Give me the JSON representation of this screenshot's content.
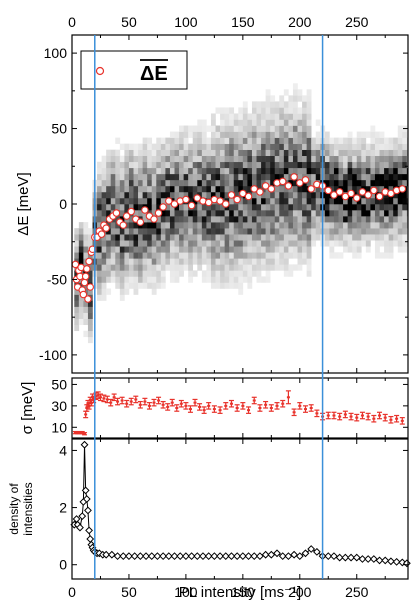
{
  "chart_data": [
    {
      "panel": "top",
      "type": "scatter",
      "xlabel": "",
      "ylabel": "ΔE [meV]",
      "xlim": [
        0,
        295
      ],
      "ylim": [
        -112,
        112
      ],
      "x_ticks": [
        "0",
        "50",
        "100",
        "150",
        "200",
        "250"
      ],
      "y_ticks": [
        "100",
        "50",
        "0",
        "-50",
        "-100"
      ],
      "y_tick_values": [
        100,
        50,
        0,
        -50,
        -100
      ],
      "legend": {
        "placement": "top-left",
        "marker": "open circle",
        "label": "ΔE",
        "overline": true
      },
      "background": "grayscale 2D histogram",
      "vlines": [
        20,
        220
      ],
      "series": [
        {
          "name": "ΔE",
          "marker": "open-circle",
          "color": "#e8322b",
          "x": [
            3,
            4,
            5,
            6,
            7,
            8,
            9,
            10,
            11,
            12,
            13,
            14,
            15,
            16,
            17,
            18,
            20,
            22,
            24,
            26,
            28,
            30,
            33,
            36,
            39,
            42,
            45,
            48,
            52,
            56,
            60,
            64,
            68,
            72,
            76,
            80,
            85,
            90,
            95,
            100,
            105,
            110,
            115,
            120,
            125,
            130,
            135,
            140,
            145,
            150,
            155,
            160,
            165,
            170,
            175,
            180,
            185,
            190,
            195,
            200,
            205,
            210,
            215,
            220,
            225,
            230,
            235,
            240,
            245,
            250,
            255,
            260,
            265,
            270,
            275,
            280,
            285,
            290
          ],
          "y": [
            -40,
            -50,
            -55,
            -44,
            -48,
            -42,
            -57,
            -60,
            -52,
            -48,
            -43,
            -63,
            -38,
            -55,
            -32,
            -30,
            -22,
            -22,
            -18,
            -20,
            -14,
            -16,
            -10,
            -8,
            -6,
            -12,
            -14,
            -8,
            -5,
            -10,
            -12,
            -4,
            -8,
            -10,
            -6,
            -2,
            2,
            0,
            2,
            3,
            -1,
            4,
            2,
            1,
            3,
            2,
            0,
            6,
            3,
            7,
            5,
            10,
            8,
            12,
            10,
            14,
            15,
            12,
            18,
            14,
            16,
            10,
            13,
            12,
            9,
            6,
            8,
            5,
            7,
            4,
            8,
            6,
            9,
            5,
            8,
            7,
            9,
            10
          ]
        }
      ]
    },
    {
      "panel": "middle",
      "type": "scatter",
      "xlabel": "",
      "ylabel": "σ [meV]",
      "xlim": [
        0,
        295
      ],
      "ylim": [
        0,
        56
      ],
      "y_ticks": [
        "50",
        "30",
        "10"
      ],
      "y_tick_values": [
        50,
        30,
        10
      ],
      "vlines": [
        20,
        220
      ],
      "series": [
        {
          "marker": "error-bar",
          "color": "#e8322b",
          "x": [
            3,
            5,
            7,
            9,
            11,
            12,
            13,
            14,
            15,
            16,
            17,
            18,
            19,
            21,
            23,
            25,
            28,
            31,
            34,
            37,
            40,
            44,
            48,
            52,
            56,
            60,
            64,
            68,
            72,
            76,
            80,
            84,
            88,
            92,
            96,
            100,
            104,
            108,
            112,
            116,
            120,
            125,
            130,
            135,
            140,
            145,
            150,
            155,
            160,
            165,
            170,
            175,
            180,
            185,
            190,
            195,
            200,
            205,
            210,
            215,
            220,
            225,
            230,
            235,
            240,
            245,
            250,
            255,
            260,
            265,
            270,
            275,
            280,
            285,
            290
          ],
          "y": [
            5,
            5,
            5,
            5,
            4,
            22,
            28,
            32,
            30,
            35,
            33,
            38,
            36,
            39,
            40,
            38,
            37,
            36,
            33,
            38,
            34,
            35,
            32,
            34,
            36,
            31,
            34,
            30,
            33,
            35,
            31,
            29,
            33,
            28,
            32,
            30,
            27,
            33,
            29,
            26,
            30,
            27,
            26,
            30,
            32,
            28,
            30,
            26,
            35,
            28,
            31,
            28,
            30,
            32,
            38,
            24,
            30,
            27,
            28,
            23,
            20,
            21,
            21,
            20,
            22,
            20,
            19,
            21,
            20,
            18,
            21,
            19,
            17,
            18,
            16
          ],
          "err": [
            1,
            1,
            1,
            1,
            1,
            3,
            3,
            3,
            3,
            3,
            3,
            3,
            3,
            3,
            3,
            3,
            3,
            3,
            3,
            3,
            3,
            3,
            3,
            3,
            3,
            3,
            3,
            3,
            3,
            3,
            3,
            3,
            3,
            3,
            3,
            3,
            3,
            3,
            3,
            3,
            3,
            3,
            3,
            3,
            3,
            3,
            3,
            3,
            3,
            3,
            3,
            3,
            3,
            3,
            6,
            3,
            3,
            3,
            3,
            3,
            3,
            3,
            3,
            3,
            3,
            3,
            3,
            3,
            3,
            3,
            3,
            3,
            3,
            3,
            3
          ]
        }
      ]
    },
    {
      "panel": "bottom",
      "type": "line",
      "xlabel": "PL intensity [ms⁻¹]",
      "ylabel_line1": "density of",
      "ylabel_line2": "intensities",
      "xlim": [
        0,
        295
      ],
      "ylim": [
        -0.5,
        4.4
      ],
      "x_ticks": [
        "0",
        "50",
        "100",
        "150",
        "200",
        "250"
      ],
      "y_ticks": [
        "4",
        "2",
        "0"
      ],
      "y_tick_values": [
        4,
        2,
        0
      ],
      "vlines": [
        20,
        220
      ],
      "series": [
        {
          "marker": "open-diamond",
          "color": "#000000",
          "x": [
            2,
            4,
            5,
            7,
            9,
            10,
            11,
            12,
            13,
            14,
            15,
            16,
            17,
            18,
            19,
            20,
            22,
            24,
            27,
            30,
            35,
            40,
            45,
            50,
            55,
            60,
            65,
            70,
            75,
            80,
            85,
            90,
            95,
            100,
            105,
            110,
            115,
            120,
            125,
            130,
            135,
            140,
            145,
            150,
            155,
            160,
            165,
            170,
            175,
            180,
            185,
            190,
            195,
            200,
            205,
            210,
            215,
            220,
            225,
            230,
            235,
            240,
            245,
            250,
            255,
            260,
            265,
            270,
            275,
            280,
            285,
            290,
            294
          ],
          "y": [
            1.4,
            1.6,
            1.4,
            1.3,
            1.7,
            2.2,
            4.2,
            2.6,
            2.3,
            1.9,
            1.2,
            0.9,
            0.7,
            0.6,
            0.5,
            0.45,
            0.4,
            0.4,
            0.35,
            0.35,
            0.35,
            0.3,
            0.3,
            0.3,
            0.3,
            0.3,
            0.3,
            0.3,
            0.3,
            0.3,
            0.3,
            0.3,
            0.3,
            0.3,
            0.3,
            0.3,
            0.3,
            0.3,
            0.3,
            0.3,
            0.3,
            0.3,
            0.3,
            0.3,
            0.3,
            0.3,
            0.3,
            0.35,
            0.35,
            0.4,
            0.3,
            0.3,
            0.35,
            0.3,
            0.4,
            0.55,
            0.45,
            0.3,
            0.3,
            0.3,
            0.25,
            0.25,
            0.25,
            0.25,
            0.2,
            0.2,
            0.2,
            0.15,
            0.15,
            0.12,
            0.1,
            0.08,
            0.05
          ]
        }
      ]
    }
  ],
  "colors": {
    "marker_red": "#e8322b",
    "vline_blue": "#3b8fd9",
    "axis": "#000000"
  }
}
